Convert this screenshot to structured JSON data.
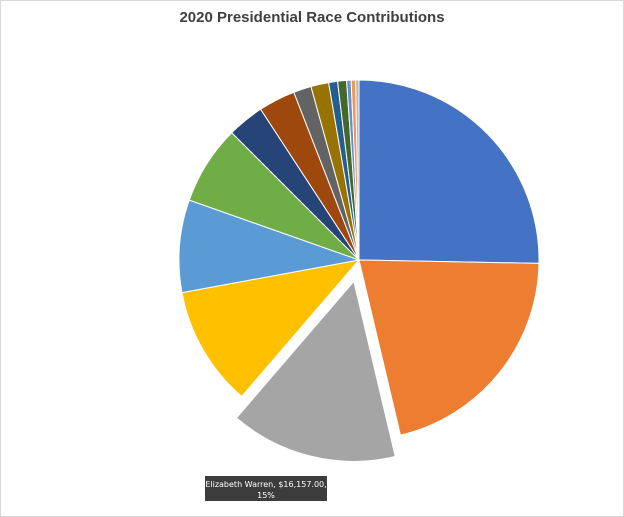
{
  "chart_data": {
    "type": "pie",
    "title": "2020 Presidential Race Contributions",
    "exploded_slice": 2,
    "slices": [
      {
        "percent": 25.3,
        "color": "#4472c4"
      },
      {
        "percent": 21.0,
        "color": "#ed7d31"
      },
      {
        "percent": 15.0,
        "color": "#a5a5a5",
        "label": {
          "line1": "Elizabeth  Warren, $16,157.00,",
          "line2": "15%"
        }
      },
      {
        "percent": 10.8,
        "color": "#ffc000"
      },
      {
        "percent": 8.3,
        "color": "#5b9bd5"
      },
      {
        "percent": 7.1,
        "color": "#70ad47"
      },
      {
        "percent": 3.3,
        "color": "#264478"
      },
      {
        "percent": 3.3,
        "color": "#9e480e"
      },
      {
        "percent": 1.6,
        "color": "#636363"
      },
      {
        "percent": 1.6,
        "color": "#997300"
      },
      {
        "percent": 0.8,
        "color": "#255e91"
      },
      {
        "percent": 0.8,
        "color": "#43682b"
      },
      {
        "percent": 0.4,
        "color": "#698ed0"
      },
      {
        "percent": 0.4,
        "color": "#f1975a"
      },
      {
        "percent": 0.3,
        "color": "#b7b7b7"
      }
    ]
  }
}
